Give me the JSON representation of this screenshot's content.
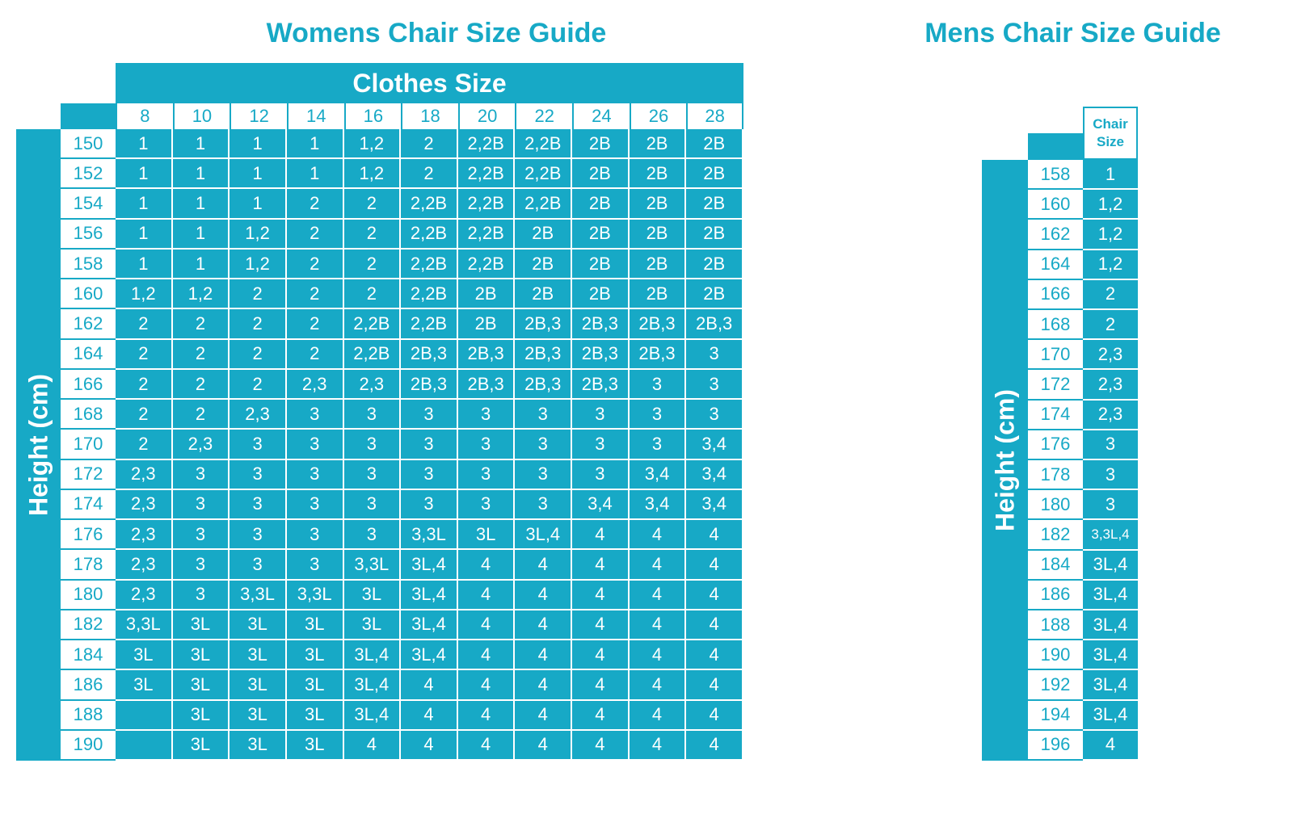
{
  "womens": {
    "title": "Womens Chair Size Guide",
    "header": "Clothes Size",
    "side_label": "Height (cm)",
    "columns": [
      8,
      10,
      12,
      14,
      16,
      18,
      20,
      22,
      24,
      26,
      28
    ],
    "rows": [
      {
        "height": 150,
        "sizes": [
          1,
          1,
          1,
          1,
          "1,2",
          2,
          "2,2B",
          "2,2B",
          "2B",
          "2B",
          "2B"
        ]
      },
      {
        "height": 152,
        "sizes": [
          1,
          1,
          1,
          1,
          "1,2",
          2,
          "2,2B",
          "2,2B",
          "2B",
          "2B",
          "2B"
        ]
      },
      {
        "height": 154,
        "sizes": [
          1,
          1,
          1,
          2,
          2,
          "2,2B",
          "2,2B",
          "2,2B",
          "2B",
          "2B",
          "2B"
        ]
      },
      {
        "height": 156,
        "sizes": [
          1,
          1,
          "1,2",
          2,
          2,
          "2,2B",
          "2,2B",
          "2B",
          "2B",
          "2B",
          "2B"
        ]
      },
      {
        "height": 158,
        "sizes": [
          1,
          1,
          "1,2",
          2,
          2,
          "2,2B",
          "2,2B",
          "2B",
          "2B",
          "2B",
          "2B"
        ]
      },
      {
        "height": 160,
        "sizes": [
          "1,2",
          "1,2",
          2,
          2,
          2,
          "2,2B",
          "2B",
          "2B",
          "2B",
          "2B",
          "2B"
        ]
      },
      {
        "height": 162,
        "sizes": [
          2,
          2,
          2,
          2,
          "2,2B",
          "2,2B",
          "2B",
          "2B,3",
          "2B,3",
          "2B,3",
          "2B,3"
        ]
      },
      {
        "height": 164,
        "sizes": [
          2,
          2,
          2,
          2,
          "2,2B",
          "2B,3",
          "2B,3",
          "2B,3",
          "2B,3",
          "2B,3",
          3
        ]
      },
      {
        "height": 166,
        "sizes": [
          2,
          2,
          2,
          "2,3",
          "2,3",
          "2B,3",
          "2B,3",
          "2B,3",
          "2B,3",
          3,
          3
        ]
      },
      {
        "height": 168,
        "sizes": [
          2,
          2,
          "2,3",
          3,
          3,
          3,
          3,
          3,
          3,
          3,
          3
        ]
      },
      {
        "height": 170,
        "sizes": [
          2,
          "2,3",
          3,
          3,
          3,
          3,
          3,
          3,
          3,
          3,
          "3,4"
        ]
      },
      {
        "height": 172,
        "sizes": [
          "2,3",
          3,
          3,
          3,
          3,
          3,
          3,
          3,
          3,
          "3,4",
          "3,4"
        ]
      },
      {
        "height": 174,
        "sizes": [
          "2,3",
          3,
          3,
          3,
          3,
          3,
          3,
          3,
          "3,4",
          "3,4",
          "3,4"
        ]
      },
      {
        "height": 176,
        "sizes": [
          "2,3",
          3,
          3,
          3,
          3,
          "3,3L",
          "3L",
          "3L,4",
          4,
          4,
          4
        ]
      },
      {
        "height": 178,
        "sizes": [
          "2,3",
          3,
          3,
          3,
          "3,3L",
          "3L,4",
          4,
          4,
          4,
          4,
          4
        ]
      },
      {
        "height": 180,
        "sizes": [
          "2,3",
          3,
          "3,3L",
          "3,3L",
          "3L",
          "3L,4",
          4,
          4,
          4,
          4,
          4
        ]
      },
      {
        "height": 182,
        "sizes": [
          "3,3L",
          "3L",
          "3L",
          "3L",
          "3L",
          "3L,4",
          4,
          4,
          4,
          4,
          4
        ]
      },
      {
        "height": 184,
        "sizes": [
          "3L",
          "3L",
          "3L",
          "3L",
          "3L,4",
          "3L,4",
          4,
          4,
          4,
          4,
          4
        ]
      },
      {
        "height": 186,
        "sizes": [
          "3L",
          "3L",
          "3L",
          "3L",
          "3L,4",
          4,
          4,
          4,
          4,
          4,
          4
        ]
      },
      {
        "height": 188,
        "sizes": [
          null,
          "3L",
          "3L",
          "3L",
          "3L,4",
          4,
          4,
          4,
          4,
          4,
          4
        ]
      },
      {
        "height": 190,
        "sizes": [
          null,
          "3L",
          "3L",
          "3L",
          4,
          4,
          4,
          4,
          4,
          4,
          4
        ]
      }
    ]
  },
  "mens": {
    "title": "Mens Chair Size Guide",
    "column_header": "Chair Size",
    "side_label": "Height (cm)",
    "rows": [
      {
        "height": 158,
        "size": 1
      },
      {
        "height": 160,
        "size": "1,2"
      },
      {
        "height": 162,
        "size": "1,2"
      },
      {
        "height": 164,
        "size": "1,2"
      },
      {
        "height": 166,
        "size": 2
      },
      {
        "height": 168,
        "size": 2
      },
      {
        "height": 170,
        "size": "2,3"
      },
      {
        "height": 172,
        "size": "2,3"
      },
      {
        "height": 174,
        "size": "2,3"
      },
      {
        "height": 176,
        "size": 3
      },
      {
        "height": 178,
        "size": 3
      },
      {
        "height": 180,
        "size": 3
      },
      {
        "height": 182,
        "size": "3,3L,4"
      },
      {
        "height": 184,
        "size": "3L,4"
      },
      {
        "height": 186,
        "size": "3L,4"
      },
      {
        "height": 188,
        "size": "3L,4"
      },
      {
        "height": 190,
        "size": "3L,4"
      },
      {
        "height": 192,
        "size": "3L,4"
      },
      {
        "height": 194,
        "size": "3L,4"
      },
      {
        "height": 196,
        "size": 4
      }
    ]
  }
}
